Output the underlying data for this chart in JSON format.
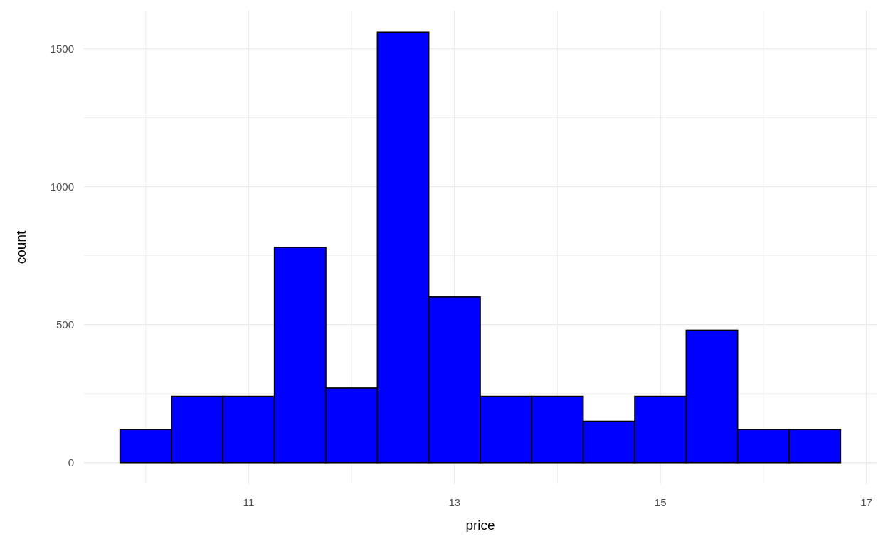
{
  "chart_data": {
    "type": "histogram",
    "xlabel": "price",
    "ylabel": "count",
    "bins": [
      9.75,
      10.25,
      10.75,
      11.25,
      11.75,
      12.25,
      12.75,
      13.25,
      13.75,
      14.25,
      14.75,
      15.25,
      15.75,
      16.25,
      16.75
    ],
    "values": [
      120,
      240,
      240,
      780,
      270,
      1560,
      600,
      240,
      240,
      150,
      240,
      480,
      120,
      120
    ],
    "color": "#0000ff",
    "xlim": [
      9.4,
      17.1
    ],
    "ylim": [
      -78,
      1638
    ],
    "xticks": [
      {
        "value": 10,
        "label": null
      },
      11,
      {
        "value": 12,
        "label": null
      },
      13,
      {
        "value": 14,
        "label": null
      },
      15,
      {
        "value": 16,
        "label": null
      },
      17
    ],
    "yticks": [
      0,
      {
        "value": 250,
        "label": null
      },
      500,
      {
        "value": 750,
        "label": null
      },
      1000,
      {
        "value": 1250,
        "label": null
      },
      1500
    ],
    "grid": true
  }
}
